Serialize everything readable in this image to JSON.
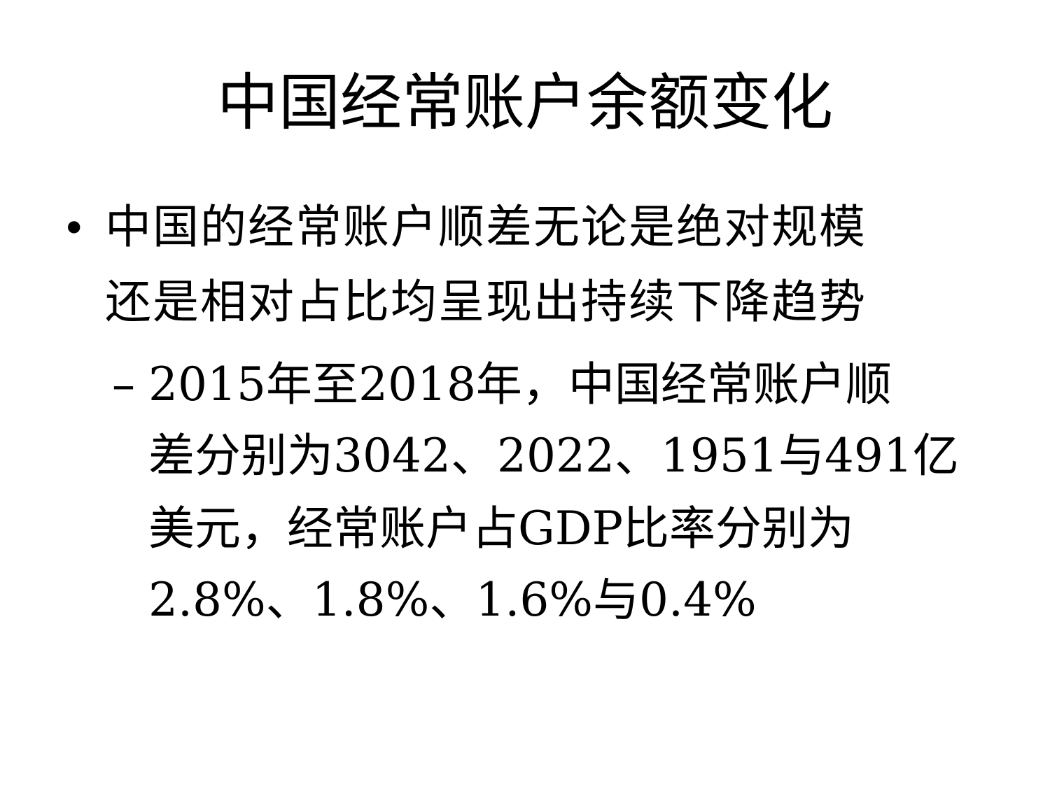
{
  "slide": {
    "title": "中国经常账户余额变化",
    "bullet": {
      "marker": "•",
      "lines": [
        "中国的经常账户顺差无论是绝对规模",
        "还是相对占比均呈现出持续下降趋势"
      ]
    },
    "sub_bullet": {
      "marker": "–",
      "lines": [
        "2015年至2018年，中国经常账户顺",
        "差分别为3042、2022、1951与491亿",
        "美元，经常账户占GDP比率分别为",
        "2.8%、1.8%、1.6%与0.4%"
      ]
    }
  }
}
